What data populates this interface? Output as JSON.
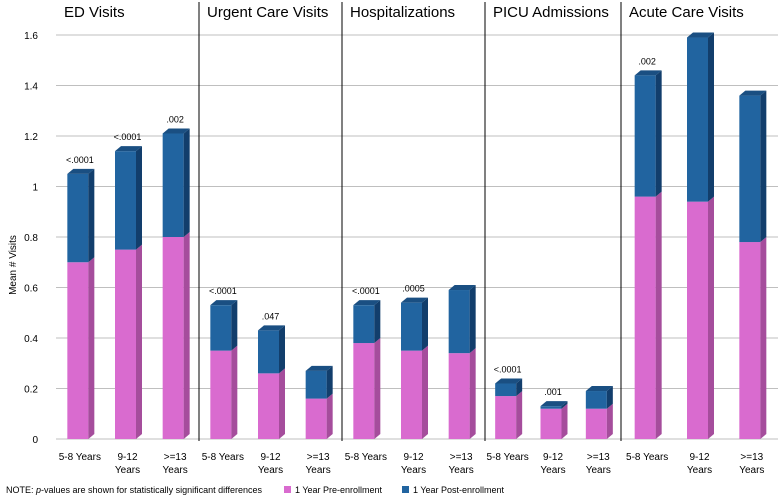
{
  "chart_data": {
    "type": "bar",
    "stacked": true,
    "ylabel": "Mean # Visits",
    "ylim": [
      0,
      1.6
    ],
    "yticks": [
      "0",
      "0.2",
      "0.4",
      "0.6",
      "0.8",
      "1",
      "1.2",
      "1.4",
      "1.6"
    ],
    "grid": true,
    "categories": [
      {
        "line1": "5-8 Years",
        "line2": ""
      },
      {
        "line1": "9-12",
        "line2": "Years"
      },
      {
        "line1": ">=13",
        "line2": "Years"
      }
    ],
    "series_names": [
      "1 Year Pre-enrollment",
      "1 Year Post-enrollment"
    ],
    "colors": {
      "pre": "#D96BCF",
      "pre_side": "#A54D9C",
      "post": "#2164A0",
      "post_side": "#123E6C",
      "post_top": "#1A4F82",
      "grid": "#BFBFBF",
      "divider": "#000000"
    },
    "panels": [
      {
        "title": "ED Visits",
        "pre": [
          0.7,
          0.75,
          0.8
        ],
        "total": [
          1.05,
          1.14,
          1.21
        ],
        "pvalues": [
          "<.0001",
          "<.0001",
          ".002"
        ]
      },
      {
        "title": "Urgent Care Visits",
        "pre": [
          0.35,
          0.26,
          0.16
        ],
        "total": [
          0.53,
          0.43,
          0.27
        ],
        "pvalues": [
          "<.0001",
          ".047",
          ""
        ]
      },
      {
        "title": "Hospitalizations",
        "pre": [
          0.38,
          0.35,
          0.34
        ],
        "total": [
          0.53,
          0.54,
          0.59
        ],
        "pvalues": [
          "<.0001",
          ".0005",
          ""
        ]
      },
      {
        "title": "PICU Admissions",
        "pre": [
          0.17,
          0.12,
          0.12
        ],
        "total": [
          0.22,
          0.13,
          0.19
        ],
        "pvalues": [
          "<.0001",
          ".001",
          ""
        ]
      },
      {
        "title": "Acute Care Visits",
        "pre": [
          0.96,
          0.94,
          0.78
        ],
        "total": [
          1.44,
          1.59,
          1.36
        ],
        "pvalues": [
          ".002",
          "",
          ""
        ]
      }
    ]
  },
  "footer": {
    "note_prefix": "NOTE: ",
    "note_italic": "p",
    "note_suffix": "-values are shown for statistically significant differences"
  }
}
